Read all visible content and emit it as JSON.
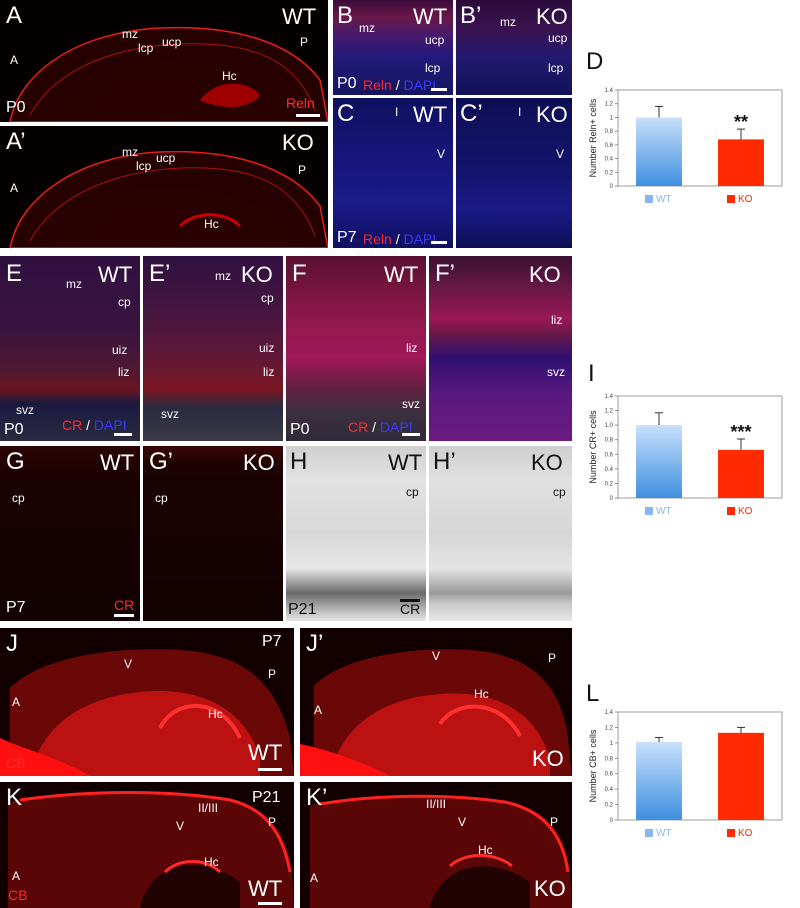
{
  "panels": {
    "A": {
      "letter": "A",
      "genotype": "WT",
      "age": "P0",
      "stain": "Reln",
      "regions": [
        "mz",
        "ucp",
        "lcp",
        "Hc",
        "A",
        "P"
      ]
    },
    "A2": {
      "letter": "A’",
      "genotype": "KO",
      "regions": [
        "mz",
        "ucp",
        "lcp",
        "Hc",
        "A",
        "P"
      ]
    },
    "B": {
      "letter": "B",
      "genotype": "WT",
      "age": "P0",
      "stain1": "Reln",
      "slash": "/",
      "stain2": "DAPI",
      "regions": [
        "mz",
        "ucp",
        "lcp"
      ]
    },
    "B2": {
      "letter": "B’",
      "genotype": "KO",
      "regions": [
        "mz",
        "ucp",
        "lcp"
      ]
    },
    "C": {
      "letter": "C",
      "genotype": "WT",
      "age": "P7",
      "stain1": "Reln",
      "slash": "/",
      "stain2": "DAPI",
      "regions": [
        "I",
        "V"
      ]
    },
    "C2": {
      "letter": "C’",
      "genotype": "KO",
      "regions": [
        "I",
        "V"
      ]
    },
    "E": {
      "letter": "E",
      "genotype": "WT",
      "age": "P0",
      "stain1": "CR",
      "slash": "/",
      "stain2": "DAPI",
      "regions": [
        "mz",
        "cp",
        "uiz",
        "liz",
        "svz"
      ]
    },
    "E2": {
      "letter": "E’",
      "genotype": "KO",
      "regions": [
        "mz",
        "cp",
        "uiz",
        "liz",
        "svz"
      ]
    },
    "F": {
      "letter": "F",
      "genotype": "WT",
      "age": "P0",
      "stain1": "CR",
      "slash": "/",
      "stain2": "DAPI",
      "regions": [
        "liz",
        "svz"
      ]
    },
    "F2": {
      "letter": "F’",
      "genotype": "KO",
      "regions": [
        "liz",
        "svz"
      ]
    },
    "G": {
      "letter": "G",
      "genotype": "WT",
      "age": "P7",
      "stain": "CR",
      "regions": [
        "cp"
      ]
    },
    "G2": {
      "letter": "G’",
      "genotype": "KO",
      "regions": [
        "cp"
      ]
    },
    "H": {
      "letter": "H",
      "genotype": "WT",
      "age": "P21",
      "stain": "CR",
      "regions": [
        "cp"
      ]
    },
    "H2": {
      "letter": "H’",
      "genotype": "KO",
      "regions": [
        "cp"
      ]
    },
    "J": {
      "letter": "J",
      "genotype": "WT",
      "age": "P7",
      "stain": "CB",
      "regions": [
        "V",
        "P",
        "A",
        "Hc"
      ]
    },
    "J2": {
      "letter": "J’",
      "genotype": "KO",
      "regions": [
        "V",
        "P",
        "A",
        "Hc"
      ]
    },
    "K": {
      "letter": "K",
      "genotype": "WT",
      "age": "P21",
      "stain": "CB",
      "regions": [
        "II/III",
        "V",
        "P",
        "A",
        "Hc"
      ]
    },
    "K2": {
      "letter": "K’",
      "genotype": "KO",
      "regions": [
        "II/III",
        "V",
        "P",
        "A",
        "Hc"
      ]
    }
  },
  "charts": {
    "D": {
      "letter": "D"
    },
    "I": {
      "letter": "I"
    },
    "L": {
      "letter": "L"
    }
  },
  "chart_data": [
    {
      "type": "bar",
      "panel": "D",
      "categories": [
        "WT",
        "KO"
      ],
      "values": [
        1.0,
        0.68
      ],
      "errors": [
        0.16,
        0.15
      ],
      "significance": [
        "",
        "**"
      ],
      "ylabel": "Number Reln+ cells",
      "ylim": [
        0,
        1.4
      ],
      "yticks": [
        "0",
        "0.2",
        "0.4",
        "0.6",
        "0.8",
        "1",
        "1.2",
        "1.4"
      ],
      "legend": [
        "WT",
        "KO"
      ],
      "colors": [
        "#86b8ef",
        "#ff2a00"
      ]
    },
    {
      "type": "bar",
      "panel": "I",
      "categories": [
        "WT",
        "KO"
      ],
      "values": [
        1.0,
        0.66
      ],
      "errors": [
        0.17,
        0.15
      ],
      "significance": [
        "",
        "***"
      ],
      "ylabel": "Number CR+ cells",
      "ylim": [
        0,
        1.4
      ],
      "yticks": [
        "0",
        "0.2",
        "0.4",
        "0.6",
        "0.8",
        "1.0",
        "1.2",
        "1.4"
      ],
      "legend": [
        "WT",
        "KO"
      ],
      "colors": [
        "#86b8ef",
        "#ff2a00"
      ]
    },
    {
      "type": "bar",
      "panel": "L",
      "categories": [
        "WT",
        "KO"
      ],
      "values": [
        1.01,
        1.13
      ],
      "errors": [
        0.06,
        0.07
      ],
      "significance": [
        "",
        ""
      ],
      "ylabel": "Number CB+ cells",
      "ylim": [
        0,
        1.4
      ],
      "yticks": [
        "0",
        "0.2",
        "0.4",
        "0.6",
        "0.8",
        "1",
        "1.2",
        "1.4"
      ],
      "legend": [
        "WT",
        "KO"
      ],
      "colors": [
        "#86b8ef",
        "#ff2a00"
      ]
    }
  ]
}
